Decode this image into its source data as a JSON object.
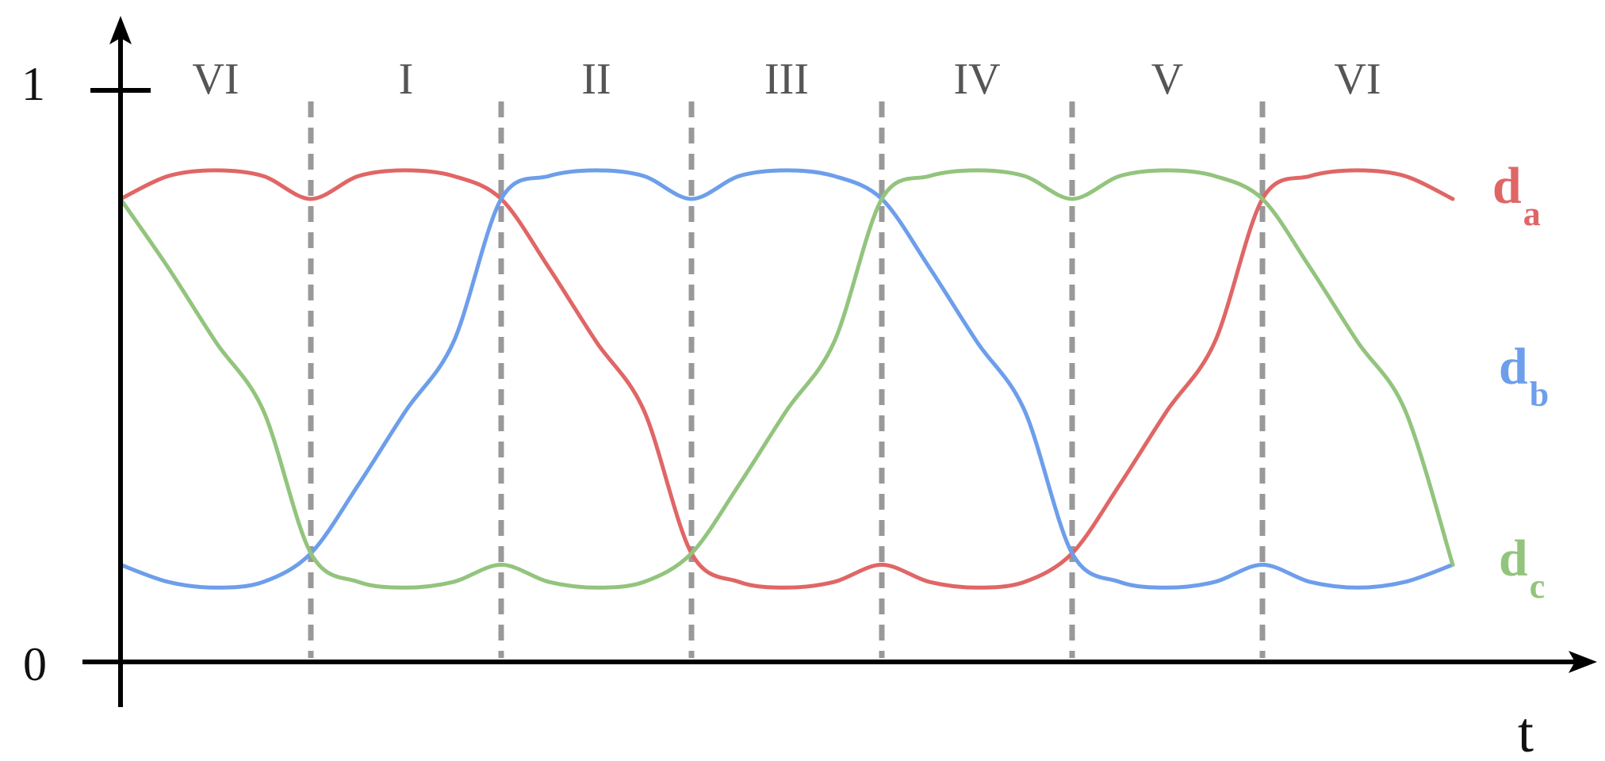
{
  "chart_data": {
    "type": "line",
    "xlabel": "t",
    "ylabel": "",
    "ylim": [
      0,
      1
    ],
    "yticks": [
      {
        "value": 0,
        "label": "0"
      },
      {
        "value": 1,
        "label": "1"
      }
    ],
    "xlim": [
      0,
      7
    ],
    "grid": false,
    "sectors": [
      "VI",
      "I",
      "II",
      "III",
      "IV",
      "V",
      "VI"
    ],
    "sector_boundaries": [
      1,
      2,
      3,
      4,
      5,
      6
    ],
    "series": [
      {
        "name": "d",
        "subscript": "a",
        "color": "#e06666",
        "points": [
          [
            0,
            0.81
          ],
          [
            0.25,
            0.85
          ],
          [
            0.5,
            0.86
          ],
          [
            0.75,
            0.85
          ],
          [
            1,
            0.81
          ],
          [
            1.25,
            0.85
          ],
          [
            1.5,
            0.86
          ],
          [
            1.75,
            0.85
          ],
          [
            2,
            0.81
          ],
          [
            2.25,
            0.69
          ],
          [
            2.5,
            0.56
          ],
          [
            2.75,
            0.44
          ],
          [
            3,
            0.19
          ],
          [
            3.25,
            0.14
          ],
          [
            3.5,
            0.13
          ],
          [
            3.75,
            0.14
          ],
          [
            4,
            0.17
          ],
          [
            4.25,
            0.14
          ],
          [
            4.5,
            0.13
          ],
          [
            4.75,
            0.14
          ],
          [
            5,
            0.19
          ],
          [
            5.25,
            0.31
          ],
          [
            5.5,
            0.44
          ],
          [
            5.75,
            0.56
          ],
          [
            6,
            0.81
          ],
          [
            6.25,
            0.85
          ],
          [
            6.5,
            0.86
          ],
          [
            6.75,
            0.85
          ],
          [
            7,
            0.81
          ]
        ]
      },
      {
        "name": "d",
        "subscript": "b",
        "color": "#6d9eeb",
        "points": [
          [
            0,
            0.17
          ],
          [
            0.25,
            0.14
          ],
          [
            0.5,
            0.13
          ],
          [
            0.75,
            0.14
          ],
          [
            1,
            0.19
          ],
          [
            1.25,
            0.31
          ],
          [
            1.5,
            0.44
          ],
          [
            1.75,
            0.56
          ],
          [
            2,
            0.81
          ],
          [
            2.25,
            0.85
          ],
          [
            2.5,
            0.86
          ],
          [
            2.75,
            0.85
          ],
          [
            3,
            0.81
          ],
          [
            3.25,
            0.85
          ],
          [
            3.5,
            0.86
          ],
          [
            3.75,
            0.85
          ],
          [
            4,
            0.81
          ],
          [
            4.25,
            0.69
          ],
          [
            4.5,
            0.56
          ],
          [
            4.75,
            0.44
          ],
          [
            5,
            0.19
          ],
          [
            5.25,
            0.14
          ],
          [
            5.5,
            0.13
          ],
          [
            5.75,
            0.14
          ],
          [
            6,
            0.17
          ],
          [
            6.25,
            0.14
          ],
          [
            6.5,
            0.13
          ],
          [
            6.75,
            0.14
          ],
          [
            7,
            0.17
          ]
        ]
      },
      {
        "name": "d",
        "subscript": "c",
        "color": "#93c47d",
        "points": [
          [
            0,
            0.81
          ],
          [
            0.25,
            0.69
          ],
          [
            0.5,
            0.56
          ],
          [
            0.75,
            0.44
          ],
          [
            1,
            0.19
          ],
          [
            1.25,
            0.14
          ],
          [
            1.5,
            0.13
          ],
          [
            1.75,
            0.14
          ],
          [
            2,
            0.17
          ],
          [
            2.25,
            0.14
          ],
          [
            2.5,
            0.13
          ],
          [
            2.75,
            0.14
          ],
          [
            3,
            0.19
          ],
          [
            3.25,
            0.31
          ],
          [
            3.5,
            0.44
          ],
          [
            3.75,
            0.56
          ],
          [
            4,
            0.81
          ],
          [
            4.25,
            0.85
          ],
          [
            4.5,
            0.86
          ],
          [
            4.75,
            0.85
          ],
          [
            5,
            0.81
          ],
          [
            5.25,
            0.85
          ],
          [
            5.5,
            0.86
          ],
          [
            5.75,
            0.85
          ],
          [
            6,
            0.81
          ],
          [
            6.25,
            0.69
          ],
          [
            6.5,
            0.56
          ],
          [
            6.75,
            0.44
          ],
          [
            7,
            0.17
          ]
        ]
      }
    ]
  }
}
